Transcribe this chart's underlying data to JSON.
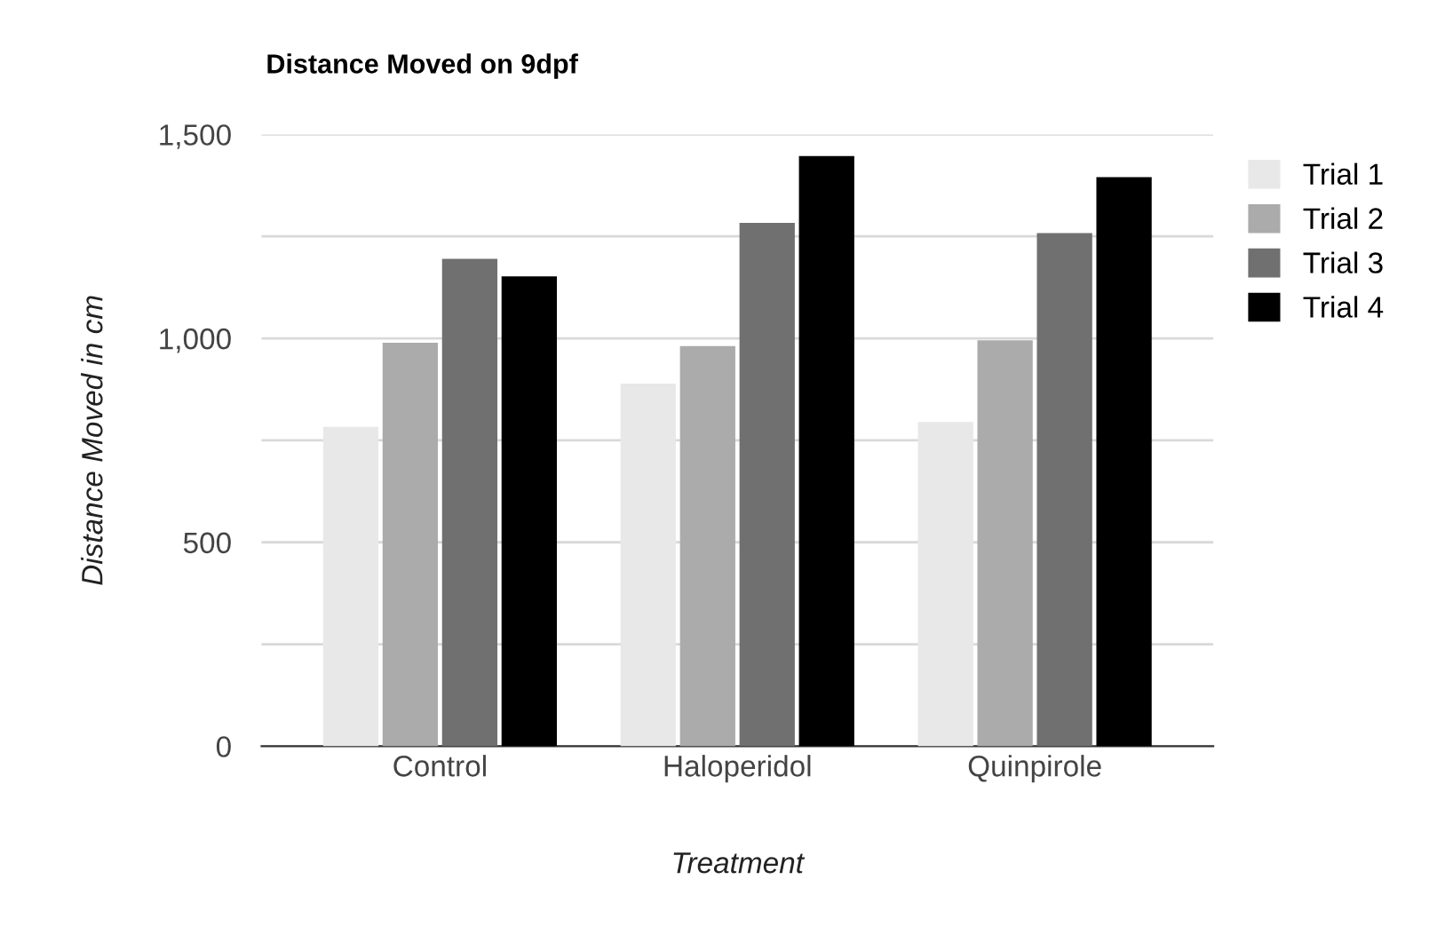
{
  "chart_data": {
    "type": "bar",
    "title": "Distance Moved on 9dpf",
    "xlabel": "Treatment",
    "ylabel": "Distance Moved in cm",
    "categories": [
      "Control",
      "Haloperidol",
      "Quinpirole"
    ],
    "series": [
      {
        "name": "Trial 1",
        "color": "#e8e8e8",
        "values": [
          783,
          889,
          795
        ]
      },
      {
        "name": "Trial 2",
        "color": "#ababab",
        "values": [
          989,
          981,
          995
        ]
      },
      {
        "name": "Trial 3",
        "color": "#707070",
        "values": [
          1195,
          1283,
          1258
        ]
      },
      {
        "name": "Trial 4",
        "color": "#000000",
        "values": [
          1152,
          1447,
          1395
        ]
      }
    ],
    "ylim": [
      0,
      1500
    ],
    "yticks": [
      0,
      {
        "value": 250,
        "label": null
      },
      {
        "value": 500,
        "label": "500"
      },
      {
        "value": 750,
        "label": null
      },
      {
        "value": 1000,
        "label": "1,000"
      },
      {
        "value": 1250,
        "label": null
      },
      {
        "value": 1500,
        "label": "1,500"
      }
    ],
    "grid": "y",
    "legend": "right"
  }
}
